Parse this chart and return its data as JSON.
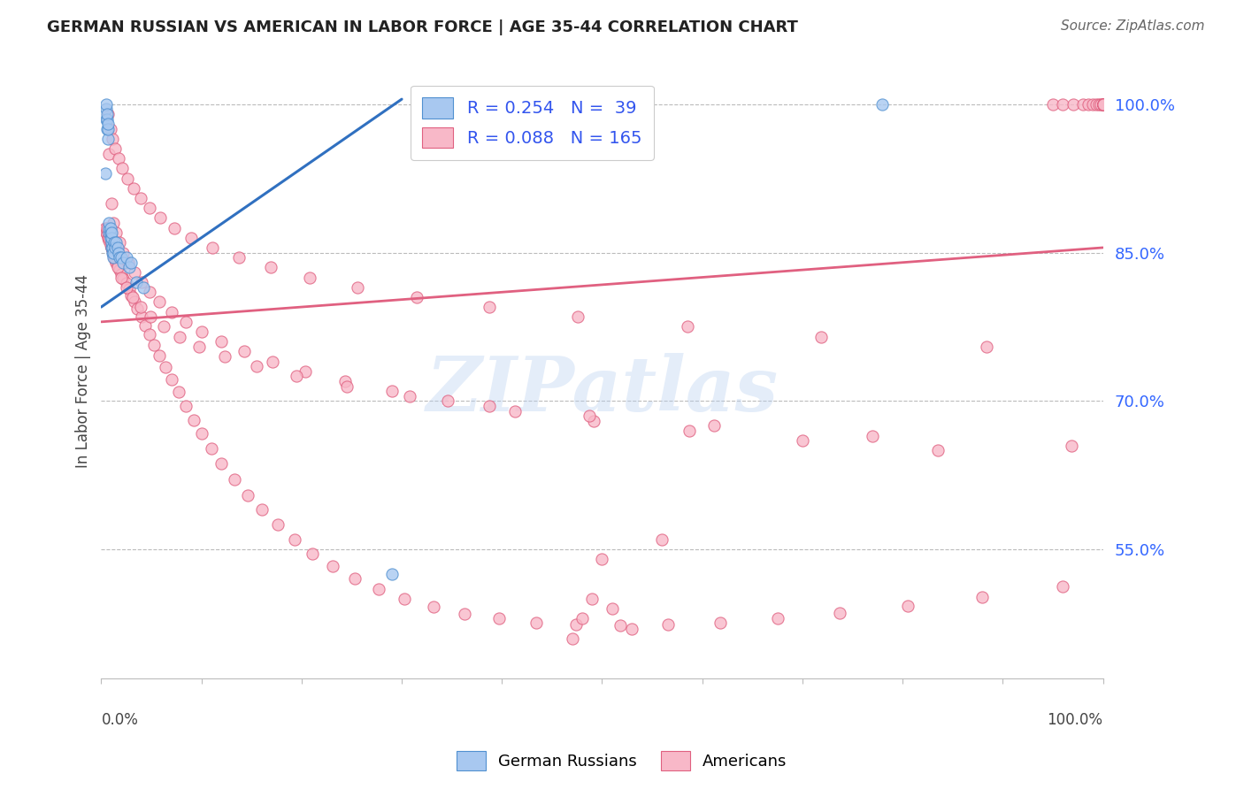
{
  "title": "GERMAN RUSSIAN VS AMERICAN IN LABOR FORCE | AGE 35-44 CORRELATION CHART",
  "source": "Source: ZipAtlas.com",
  "ylabel": "In Labor Force | Age 35-44",
  "ytick_values": [
    0.55,
    0.7,
    0.85,
    1.0
  ],
  "xlim": [
    0.0,
    1.0
  ],
  "ylim": [
    0.42,
    1.04
  ],
  "legend_blue_r": "R = 0.254",
  "legend_blue_n": "N =  39",
  "legend_pink_r": "R = 0.088",
  "legend_pink_n": "N = 165",
  "blue_fill": "#A8C8F0",
  "blue_edge": "#5090D0",
  "pink_fill": "#F8B8C8",
  "pink_edge": "#E06080",
  "blue_line_color": "#3070C0",
  "pink_line_color": "#E06080",
  "watermark": "ZIPatlas",
  "blue_scatter_x": [
    0.004,
    0.005,
    0.005,
    0.005,
    0.006,
    0.006,
    0.006,
    0.007,
    0.007,
    0.007,
    0.008,
    0.008,
    0.008,
    0.009,
    0.009,
    0.009,
    0.01,
    0.01,
    0.01,
    0.01,
    0.011,
    0.011,
    0.012,
    0.012,
    0.013,
    0.014,
    0.015,
    0.016,
    0.017,
    0.018,
    0.02,
    0.022,
    0.025,
    0.028,
    0.03,
    0.035,
    0.042,
    0.29,
    0.78
  ],
  "blue_scatter_y": [
    0.93,
    0.985,
    0.995,
    1.0,
    0.975,
    0.985,
    0.99,
    0.965,
    0.975,
    0.98,
    0.87,
    0.875,
    0.88,
    0.865,
    0.87,
    0.875,
    0.855,
    0.86,
    0.865,
    0.87,
    0.85,
    0.855,
    0.845,
    0.85,
    0.86,
    0.855,
    0.86,
    0.855,
    0.85,
    0.845,
    0.845,
    0.84,
    0.845,
    0.835,
    0.84,
    0.82,
    0.815,
    0.525,
    1.0
  ],
  "pink_scatter_x": [
    0.004,
    0.005,
    0.006,
    0.007,
    0.008,
    0.009,
    0.01,
    0.011,
    0.012,
    0.013,
    0.014,
    0.015,
    0.016,
    0.018,
    0.02,
    0.022,
    0.025,
    0.028,
    0.03,
    0.033,
    0.036,
    0.04,
    0.044,
    0.048,
    0.053,
    0.058,
    0.064,
    0.07,
    0.077,
    0.084,
    0.092,
    0.1,
    0.11,
    0.12,
    0.133,
    0.146,
    0.16,
    0.176,
    0.193,
    0.211,
    0.231,
    0.253,
    0.277,
    0.303,
    0.332,
    0.363,
    0.397,
    0.434,
    0.474,
    0.518,
    0.566,
    0.618,
    0.675,
    0.737,
    0.805,
    0.879,
    0.96,
    0.008,
    0.01,
    0.012,
    0.015,
    0.018,
    0.022,
    0.027,
    0.033,
    0.04,
    0.048,
    0.058,
    0.07,
    0.084,
    0.1,
    0.12,
    0.143,
    0.171,
    0.204,
    0.243,
    0.29,
    0.346,
    0.413,
    0.492,
    0.587,
    0.7,
    0.835,
    0.007,
    0.009,
    0.011,
    0.014,
    0.017,
    0.021,
    0.026,
    0.032,
    0.039,
    0.048,
    0.059,
    0.073,
    0.09,
    0.111,
    0.137,
    0.169,
    0.208,
    0.256,
    0.315,
    0.387,
    0.476,
    0.585,
    0.719,
    0.884,
    0.006,
    0.008,
    0.01,
    0.013,
    0.016,
    0.02,
    0.025,
    0.031,
    0.039,
    0.049,
    0.062,
    0.078,
    0.098,
    0.123,
    0.155,
    0.195,
    0.245,
    0.308,
    0.387,
    0.487,
    0.612,
    0.77,
    0.969,
    0.95,
    0.96,
    0.97,
    0.98,
    0.985,
    0.99,
    0.993,
    0.996,
    0.998,
    1.0,
    1.0,
    1.0,
    1.0,
    1.0,
    1.0,
    1.0,
    1.0,
    1.0,
    1.0,
    1.0,
    1.0,
    1.0,
    1.0,
    1.0,
    1.0,
    1.0,
    1.0,
    1.0,
    0.5,
    0.56,
    0.47,
    0.53,
    0.48,
    0.51,
    0.49
  ],
  "pink_scatter_y": [
    0.875,
    0.87,
    0.868,
    0.865,
    0.862,
    0.858,
    0.855,
    0.852,
    0.848,
    0.845,
    0.842,
    0.84,
    0.837,
    0.833,
    0.828,
    0.824,
    0.819,
    0.813,
    0.807,
    0.8,
    0.793,
    0.785,
    0.776,
    0.767,
    0.757,
    0.746,
    0.734,
    0.722,
    0.709,
    0.695,
    0.681,
    0.667,
    0.652,
    0.637,
    0.621,
    0.605,
    0.59,
    0.575,
    0.56,
    0.546,
    0.533,
    0.521,
    0.51,
    0.5,
    0.492,
    0.485,
    0.48,
    0.476,
    0.474,
    0.473,
    0.474,
    0.476,
    0.48,
    0.486,
    0.493,
    0.502,
    0.513,
    0.95,
    0.9,
    0.88,
    0.87,
    0.86,
    0.85,
    0.84,
    0.83,
    0.82,
    0.81,
    0.8,
    0.79,
    0.78,
    0.77,
    0.76,
    0.75,
    0.74,
    0.73,
    0.72,
    0.71,
    0.7,
    0.69,
    0.68,
    0.67,
    0.66,
    0.65,
    0.99,
    0.975,
    0.965,
    0.955,
    0.945,
    0.935,
    0.925,
    0.915,
    0.905,
    0.895,
    0.885,
    0.875,
    0.865,
    0.855,
    0.845,
    0.835,
    0.825,
    0.815,
    0.805,
    0.795,
    0.785,
    0.775,
    0.765,
    0.755,
    0.875,
    0.865,
    0.855,
    0.845,
    0.835,
    0.825,
    0.815,
    0.805,
    0.795,
    0.785,
    0.775,
    0.765,
    0.755,
    0.745,
    0.735,
    0.725,
    0.715,
    0.705,
    0.695,
    0.685,
    0.675,
    0.665,
    0.655,
    1.0,
    1.0,
    1.0,
    1.0,
    1.0,
    1.0,
    1.0,
    1.0,
    1.0,
    1.0,
    1.0,
    1.0,
    1.0,
    1.0,
    1.0,
    1.0,
    1.0,
    1.0,
    1.0,
    1.0,
    1.0,
    1.0,
    1.0,
    1.0,
    1.0,
    1.0,
    1.0,
    1.0,
    0.54,
    0.56,
    0.46,
    0.47,
    0.48,
    0.49,
    0.5
  ]
}
